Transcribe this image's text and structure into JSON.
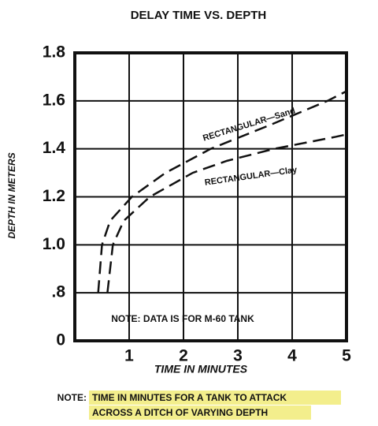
{
  "chart_data": {
    "type": "line",
    "title": "DELAY TIME VS. DEPTH",
    "x_label": "TIME IN MINUTES",
    "y_label": "DEPTH IN METERS",
    "xlim": [
      0,
      5
    ],
    "xticks": [
      1,
      2,
      3,
      4,
      5
    ],
    "ylim": [
      0.6,
      1.8
    ],
    "yticks": [
      0,
      {
        "value": 0.8,
        "label": ".8"
      },
      {
        "value": 1.0,
        "label": "1.0"
      },
      1.2,
      1.4,
      1.6,
      1.8
    ],
    "axis_break": true,
    "grid": true,
    "series": [
      {
        "name": "RECTANGULAR—Sand",
        "color": "#111111",
        "x": [
          0.43,
          0.5,
          0.65,
          1.05,
          1.67,
          2.5,
          3.6,
          4.65,
          5
        ],
        "values": [
          0.8,
          1.0,
          1.1,
          1.2,
          1.3,
          1.4,
          1.5,
          1.6,
          1.64
        ]
      },
      {
        "name": "RECTANGULAR—Clay",
        "color": "#111111",
        "x": [
          0.6,
          0.7,
          0.9,
          1.38,
          2.17,
          2.8,
          3.67,
          4.8,
          5
        ],
        "values": [
          0.8,
          1.0,
          1.1,
          1.2,
          1.3,
          1.35,
          1.4,
          1.45,
          1.46
        ]
      }
    ],
    "annotation": "NOTE: DATA IS FOR M-60 TANK",
    "footnote_label": "NOTE:",
    "footnote_lines": [
      "TIME IN MINUTES FOR A TANK TO ATTACK",
      "ACROSS A DITCH OF VARYING DEPTH"
    ]
  }
}
